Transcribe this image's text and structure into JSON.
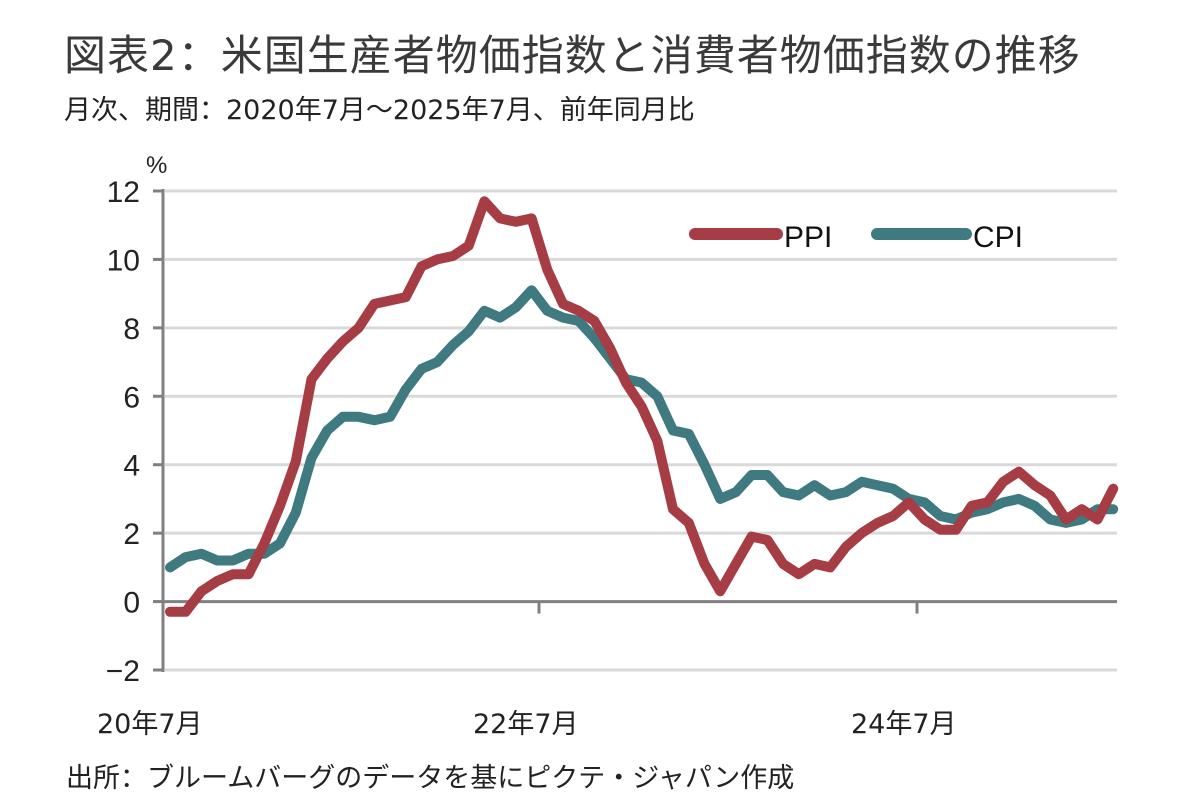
{
  "header": {
    "title": "図表2：米国生産者物価指数と消費者物価指数の推移",
    "subtitle": "月次、期間：2020年7月～2025年7月、前年同月比"
  },
  "footer": {
    "source": "出所：ブルームバーグのデータを基にピクテ・ジャパン作成"
  },
  "colors": {
    "ppi": "#a63d45",
    "cpi": "#3f7a80",
    "grid": "#d9d9d9",
    "axis": "#808080"
  },
  "chart_data": {
    "type": "line",
    "title": "図表2：米国生産者物価指数と消費者物価指数の推移",
    "subtitle": "月次、期間：2020年7月～2025年7月、前年同月比",
    "xlabel": "",
    "ylabel": "%",
    "ylim": [
      -2,
      12
    ],
    "yticks": [
      -2,
      0,
      2,
      4,
      6,
      8,
      10,
      12
    ],
    "ytick_labels": [
      "−2",
      "0",
      "2",
      "4",
      "6",
      "8",
      "10",
      "12"
    ],
    "x_start": "2020-07",
    "x_end": "2025-07",
    "xtick_labels": [
      {
        "index": 0,
        "label": "20年7月"
      },
      {
        "index": 24,
        "label": "22年7月"
      },
      {
        "index": 48,
        "label": "24年7月"
      }
    ],
    "grid": true,
    "legend": {
      "placement": "top-right",
      "entries": [
        "PPI",
        "CPI"
      ]
    },
    "x": [
      "2020-07",
      "2020-08",
      "2020-09",
      "2020-10",
      "2020-11",
      "2020-12",
      "2021-01",
      "2021-02",
      "2021-03",
      "2021-04",
      "2021-05",
      "2021-06",
      "2021-07",
      "2021-08",
      "2021-09",
      "2021-10",
      "2021-11",
      "2021-12",
      "2022-01",
      "2022-02",
      "2022-03",
      "2022-04",
      "2022-05",
      "2022-06",
      "2022-07",
      "2022-08",
      "2022-09",
      "2022-10",
      "2022-11",
      "2022-12",
      "2023-01",
      "2023-02",
      "2023-03",
      "2023-04",
      "2023-05",
      "2023-06",
      "2023-07",
      "2023-08",
      "2023-09",
      "2023-10",
      "2023-11",
      "2023-12",
      "2024-01",
      "2024-02",
      "2024-03",
      "2024-04",
      "2024-05",
      "2024-06",
      "2024-07",
      "2024-08",
      "2024-09",
      "2024-10",
      "2024-11",
      "2024-12",
      "2025-01",
      "2025-02",
      "2025-03",
      "2025-04",
      "2025-05",
      "2025-06",
      "2025-07"
    ],
    "series": [
      {
        "name": "PPI",
        "values": [
          -0.3,
          -0.3,
          0.3,
          0.6,
          0.8,
          0.8,
          1.7,
          2.8,
          4.1,
          6.5,
          7.1,
          7.6,
          8.0,
          8.7,
          8.8,
          8.9,
          9.8,
          10.0,
          10.1,
          10.4,
          11.7,
          11.2,
          11.1,
          11.2,
          9.7,
          8.7,
          8.5,
          8.2,
          7.4,
          6.4,
          5.7,
          4.7,
          2.7,
          2.3,
          1.1,
          0.3,
          1.1,
          1.9,
          1.8,
          1.1,
          0.8,
          1.1,
          1.0,
          1.6,
          2.0,
          2.3,
          2.5,
          2.9,
          2.4,
          2.1,
          2.1,
          2.8,
          2.9,
          3.5,
          3.8,
          3.4,
          3.1,
          2.4,
          2.7,
          2.4,
          3.3
        ]
      },
      {
        "name": "CPI",
        "values": [
          1.0,
          1.3,
          1.4,
          1.2,
          1.2,
          1.4,
          1.4,
          1.7,
          2.6,
          4.2,
          5.0,
          5.4,
          5.4,
          5.3,
          5.4,
          6.2,
          6.8,
          7.0,
          7.5,
          7.9,
          8.5,
          8.3,
          8.6,
          9.1,
          8.5,
          8.3,
          8.2,
          7.7,
          7.1,
          6.5,
          6.4,
          6.0,
          5.0,
          4.9,
          4.0,
          3.0,
          3.2,
          3.7,
          3.7,
          3.2,
          3.1,
          3.4,
          3.1,
          3.2,
          3.5,
          3.4,
          3.3,
          3.0,
          2.9,
          2.5,
          2.4,
          2.6,
          2.7,
          2.9,
          3.0,
          2.8,
          2.4,
          2.3,
          2.4,
          2.7,
          2.7
        ]
      }
    ]
  }
}
